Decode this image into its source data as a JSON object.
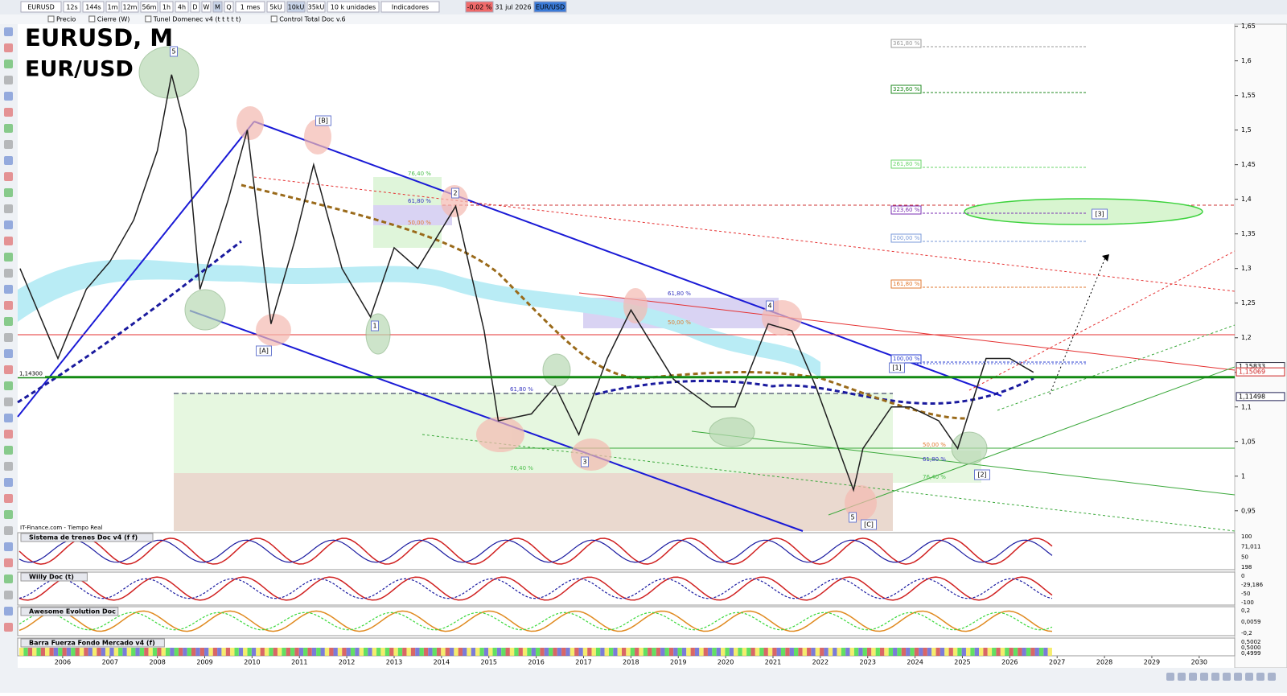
{
  "toolbar": {
    "symbol": "EURUSD",
    "timeframes": [
      "12s",
      "144s",
      "1m",
      "12m",
      "56m",
      "1h",
      "4h",
      "D",
      "W",
      "M",
      "Q"
    ],
    "period": "1 mes",
    "units": [
      "5kU",
      "10kU",
      "35kU"
    ],
    "unit_size": "10 k unidades",
    "indicators": "Indicadores",
    "change": "-0,02 %",
    "date": "31 jul 2026",
    "instrument": "EUR/USD"
  },
  "legend_bar": [
    "Precio",
    "Cierre (W)",
    "Tunel Domenec v4 (t t t t t)",
    "Control Total Doc v.6"
  ],
  "chart_data": {
    "type": "line",
    "title": "EURUSD, M",
    "subtitle": "EUR/USD",
    "source": "IT-Finance.com - Tiempo Real",
    "x": [
      2005.1,
      2005.9,
      2006.5,
      2007.0,
      2007.5,
      2008.0,
      2008.3,
      2008.6,
      2008.9,
      2009.5,
      2009.9,
      2010.4,
      2010.9,
      2011.3,
      2011.9,
      2012.5,
      2013.0,
      2013.5,
      2014.3,
      2014.9,
      2015.2,
      2015.9,
      2016.4,
      2016.9,
      2017.5,
      2018.0,
      2018.9,
      2019.7,
      2020.2,
      2020.9,
      2021.4,
      2021.9,
      2022.7,
      2022.9,
      2023.5,
      2023.9,
      2024.5,
      2024.9,
      2025.5,
      2026.0,
      2026.5
    ],
    "values": [
      1.3,
      1.17,
      1.27,
      1.31,
      1.37,
      1.47,
      1.58,
      1.5,
      1.27,
      1.4,
      1.5,
      1.22,
      1.34,
      1.45,
      1.3,
      1.23,
      1.33,
      1.3,
      1.39,
      1.21,
      1.08,
      1.09,
      1.13,
      1.06,
      1.17,
      1.24,
      1.14,
      1.1,
      1.1,
      1.22,
      1.21,
      1.13,
      0.98,
      1.04,
      1.1,
      1.1,
      1.08,
      1.04,
      1.17,
      1.17,
      1.15
    ],
    "color": "#1f1f1f",
    "xlim": [
      2005,
      2030.75
    ],
    "ylim": [
      0.93,
      1.66
    ],
    "xticks": [
      2006,
      2007,
      2008,
      2009,
      2010,
      2011,
      2012,
      2013,
      2014,
      2015,
      2016,
      2017,
      2018,
      2019,
      2020,
      2021,
      2022,
      2023,
      2024,
      2025,
      2026,
      2027,
      2028,
      2029,
      2030
    ],
    "yticks": [
      {
        "value": 0.95,
        "label": "0,95"
      },
      {
        "value": 1,
        "label": "1"
      },
      {
        "value": 1.05,
        "label": "1,05"
      },
      {
        "value": 1.1,
        "label": "1,1"
      },
      {
        "value": 1.15,
        "label": "1,15"
      },
      {
        "value": 1.2,
        "label": "1,2"
      },
      {
        "value": 1.25,
        "label": "1,25"
      },
      {
        "value": 1.3,
        "label": "1,3"
      },
      {
        "value": 1.35,
        "label": "1,35"
      },
      {
        "value": 1.4,
        "label": "1,4"
      },
      {
        "value": 1.45,
        "label": "1,45"
      },
      {
        "value": 1.5,
        "label": "1,5"
      },
      {
        "value": 1.55,
        "label": "1,55"
      },
      {
        "value": 1.6,
        "label": "1,6"
      },
      {
        "value": 1.65,
        "label": "1,65"
      }
    ],
    "price_labels": [
      {
        "value": 1.143,
        "label": "1,14300"
      },
      {
        "value": 1.15833,
        "label": "1,15833"
      },
      {
        "value": 1.15069,
        "label": "1,15069"
      },
      {
        "value": 1.11498,
        "label": "1,11498"
      }
    ],
    "fib_labels": [
      "361,80 %",
      "323,60 %",
      "261,80 %",
      "223,60 %",
      "200,00 %",
      "161,80 %",
      "100,00 %",
      "76,40 %",
      "61,80 %",
      "50,00 %",
      "61,80 %",
      "50,00 %",
      "61,80 %",
      "76,40 %",
      "50,00 %",
      "61,80 %",
      "76,40 %"
    ],
    "waves": [
      "5",
      "[B]",
      "2",
      "[A]",
      "1",
      "3",
      "4",
      "5",
      "[C]",
      "[1]",
      "[2]",
      "[3]"
    ]
  },
  "panels": [
    {
      "title": "Sistema de trenes Doc v4 (f f)",
      "axis_labels": [
        "100",
        "71,011",
        "50",
        "198"
      ]
    },
    {
      "title": "Willy Doc (t)",
      "axis_labels": [
        "0",
        "-29,186",
        "-50",
        "-100"
      ]
    },
    {
      "title": "Awesome Evolution Doc",
      "axis_labels": [
        "0,2",
        "0,0059",
        "-0,2"
      ]
    },
    {
      "title": "Barra Fuerza Fondo Mercado v4 (f)",
      "axis_labels": [
        "0,5002",
        "0,5000",
        "0,4999"
      ]
    }
  ]
}
